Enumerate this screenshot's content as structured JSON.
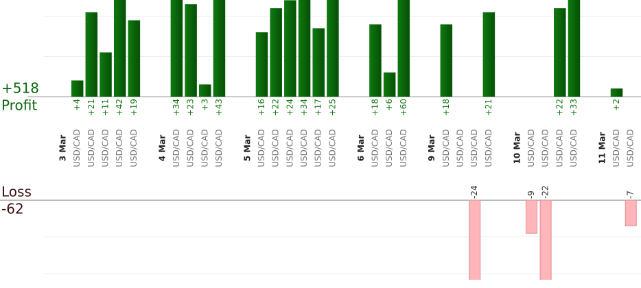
{
  "chart_data": {
    "type": "bar",
    "categories": [
      "3 Mar",
      "USD/CAD",
      "USD/CAD",
      "USD/CAD",
      "USD/CAD",
      "USD/CAD",
      null,
      "4 Mar",
      "USD/CAD",
      "USD/CAD",
      "USD/CAD",
      "USD/CAD",
      null,
      "5 Mar",
      "USD/CAD",
      "USD/CAD",
      "USD/CAD",
      "USD/CAD",
      "USD/CAD",
      "USD/CAD",
      null,
      "6 Mar",
      "USD/CAD",
      "USD/CAD",
      "USD/CAD",
      null,
      "9 Mar",
      "USD/CAD",
      "USD/CAD",
      "USD/CAD",
      "USD/CAD",
      null,
      "10 Mar",
      "USD/CAD",
      "USD/CAD",
      "USD/CAD",
      "USD/CAD",
      null,
      "11 Mar",
      "USD/CAD",
      "USD/CAD"
    ],
    "series": [
      {
        "name": "Profit",
        "total": "+518",
        "color": "#0b660b",
        "values": [
          null,
          4,
          21,
          11,
          42,
          19,
          null,
          null,
          34,
          23,
          3,
          43,
          null,
          null,
          16,
          22,
          24,
          34,
          17,
          25,
          null,
          null,
          18,
          6,
          60,
          null,
          null,
          18,
          null,
          null,
          21,
          null,
          null,
          null,
          null,
          22,
          33,
          null,
          null,
          2,
          null
        ],
        "value_labels": [
          null,
          "+4",
          "+21",
          "+11",
          "+42",
          "+19",
          null,
          null,
          "+34",
          "+23",
          "+3",
          "+43",
          null,
          null,
          "+16",
          "+22",
          "+24",
          "+34",
          "+17",
          "+25",
          null,
          null,
          "+18",
          "+6",
          "+60",
          null,
          null,
          "+18",
          null,
          null,
          "+21",
          null,
          null,
          null,
          null,
          "+22",
          "+33",
          null,
          null,
          "+2",
          null
        ]
      },
      {
        "name": "Loss",
        "total": "-62",
        "color": "#ffb6ba",
        "axis": "y2",
        "values": [
          null,
          null,
          null,
          null,
          null,
          null,
          null,
          null,
          null,
          null,
          null,
          null,
          null,
          null,
          null,
          null,
          null,
          null,
          null,
          null,
          null,
          null,
          null,
          null,
          null,
          null,
          null,
          null,
          null,
          -24,
          null,
          null,
          null,
          -9,
          -22,
          null,
          null,
          null,
          null,
          null,
          -7
        ]
      }
    ],
    "ylim": [
      0,
      24
    ],
    "yticks": [
      0,
      10,
      20
    ],
    "y2lim": [
      0,
      -21.5
    ],
    "y2ticks": [
      0,
      -10,
      -20
    ],
    "grid": true
  }
}
